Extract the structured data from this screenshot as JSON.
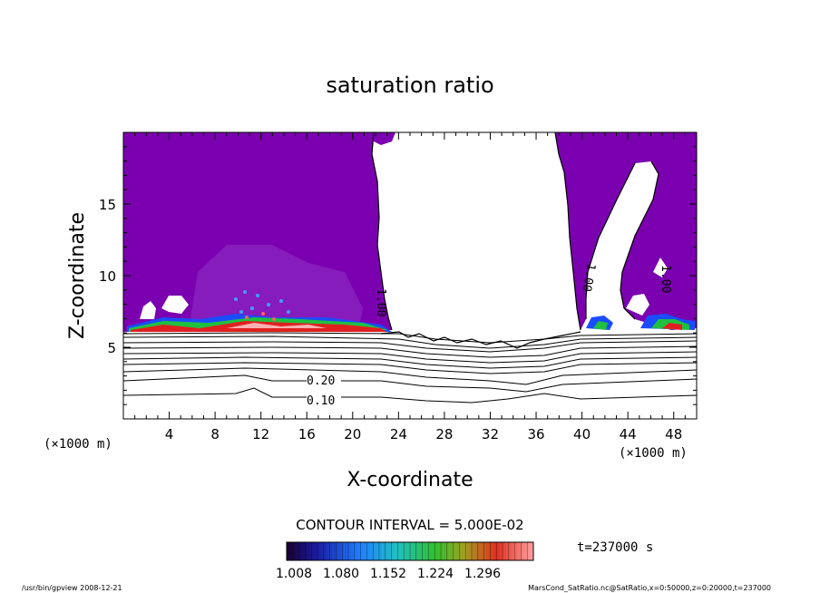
{
  "chart_data": {
    "type": "contour",
    "title": "saturation ratio",
    "xlabel": "X-coordinate",
    "ylabel": "Z-coordinate",
    "x_unit": "(×1000 m)",
    "z_unit": "(×1000 m)",
    "xlim": [
      0,
      50
    ],
    "ylim": [
      0,
      20
    ],
    "x_ticks": [
      4,
      8,
      12,
      16,
      20,
      24,
      28,
      32,
      36,
      40,
      44,
      48
    ],
    "y_ticks": [
      5,
      10,
      15
    ],
    "contour_interval_text": "CONTOUR INTERVAL = 5.000E-02",
    "time_text": "t=237000 s",
    "colorbar_ticks": [
      "1.008",
      "1.080",
      "1.152",
      "1.224",
      "1.296"
    ],
    "contour_labels": [
      "0.10",
      "0.20",
      "1.00",
      "1.00",
      "1.00"
    ],
    "fill_color": "#7b00b0",
    "footer_left": "/usr/bin/gpview   2008-12-21",
    "footer_right": "MarsCond_SatRatio.nc@SatRatio,x=0:50000,z=0:20000,t=237000"
  }
}
